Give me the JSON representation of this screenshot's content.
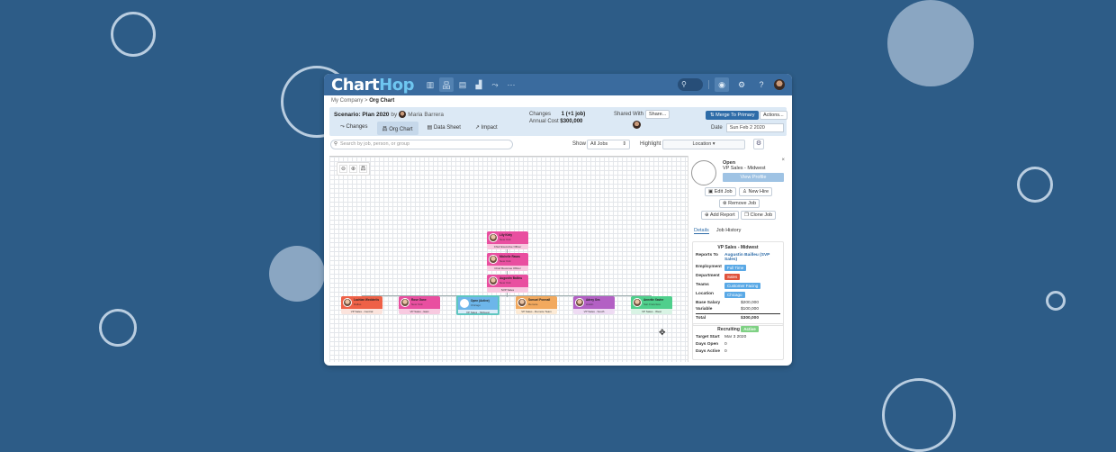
{
  "app": {
    "logo_main": "Chart",
    "logo_accent": "Hop"
  },
  "topbar": {
    "nav_icons": [
      {
        "name": "bar-chart-icon",
        "glyph": "▥",
        "active": false
      },
      {
        "name": "org-chart-icon",
        "glyph": "品",
        "active": true
      },
      {
        "name": "table-icon",
        "glyph": "▤",
        "active": false
      },
      {
        "name": "analytics-icon",
        "glyph": "▟",
        "active": false
      },
      {
        "name": "changes-icon",
        "glyph": "⤳",
        "active": false
      },
      {
        "name": "more-icon",
        "glyph": "···",
        "active": false
      }
    ],
    "search_glyph": "⚲",
    "right_icons": [
      {
        "name": "eye-icon",
        "glyph": "◉"
      },
      {
        "name": "gear-icon",
        "glyph": "⚙"
      },
      {
        "name": "help-icon",
        "glyph": "?"
      }
    ]
  },
  "breadcrumb": {
    "parent": "My Company",
    "separator": ">",
    "current": "Org Chart"
  },
  "scenario": {
    "title": "Scenario: Plan 2020",
    "by_label": "by",
    "owner": "Maria Barrera",
    "tabs": [
      {
        "label": "Changes",
        "icon": "⤳",
        "active": false
      },
      {
        "label": "Org Chart",
        "icon": "品",
        "active": true
      },
      {
        "label": "Data Sheet",
        "icon": "▤",
        "active": false
      },
      {
        "label": "Impact",
        "icon": "↗",
        "active": false
      }
    ],
    "changes_label": "Changes",
    "changes_value": "1 (+1 job)",
    "annual_cost_label": "Annual Cost",
    "annual_cost_value": "$300,000",
    "shared_with_label": "Shared With",
    "share_button": "Share...",
    "merge_button": "Merge To Primary",
    "actions_button": "Actions...",
    "date_label": "Date",
    "date_value": "Sun Feb 2 2020"
  },
  "filters": {
    "search_placeholder": "Search by job, person, or group",
    "show_label": "Show",
    "show_value": "All Jobs",
    "highlight_label": "Highlight",
    "highlight_value": "Location ▾"
  },
  "zoom_controls": [
    "⊖",
    "⊕",
    "品"
  ],
  "org_chart": {
    "chain": [
      {
        "name": "Lily Kiely",
        "location": "New York",
        "title": "Chief Executive Officer",
        "color": "#e94fa0",
        "light": "#f8c9e0"
      },
      {
        "name": "Michelle Ravas",
        "location": "New York",
        "title": "Chief Revenue Officer",
        "color": "#e94fa0",
        "light": "#f8c9e0"
      },
      {
        "name": "Augustin Bailleu",
        "location": "New York",
        "title": "SVP Sales",
        "color": "#e94fa0",
        "light": "#f8c9e0"
      }
    ],
    "reports": [
      {
        "name": "Lachlan Wedderlis",
        "location": "Dallas",
        "title": "VP Sales - Central",
        "color": "#ee6147",
        "light": "#fbe3dc",
        "selected": false
      },
      {
        "name": "Rose Gane",
        "location": "New York",
        "title": "VP Sales - East",
        "color": "#e94fa0",
        "light": "#f8c9e0",
        "selected": false
      },
      {
        "name": "Open (Active)",
        "location": "Chicago",
        "title": "VP Sales - Midwest",
        "color": "#6db6ea",
        "light": "#d9ecf9",
        "selected": true
      },
      {
        "name": "Samuel Pownall",
        "location": "Remote",
        "title": "VP Sales - Remote Team",
        "color": "#f2a95e",
        "light": "#fcead5",
        "selected": false
      },
      {
        "name": "Adrey Ora",
        "location": "Austin",
        "title": "VP Sales - South",
        "color": "#b360c4",
        "light": "#eedbf3",
        "selected": false
      },
      {
        "name": "Annette Xavier",
        "location": "San Francisco",
        "title": "VP Sales - West",
        "color": "#4fcf8c",
        "light": "#d8f3e4",
        "selected": false
      }
    ]
  },
  "panel": {
    "status": "Open",
    "job_title": "VP Sales - Midwest",
    "view_profile": "View Profile",
    "edit_job": "Edit Job",
    "new_hire": "New Hire",
    "remove_job": "Remove Job",
    "add_report": "Add Report",
    "clone_job": "Clone Job",
    "tabs": [
      "Details",
      "Job History"
    ],
    "details": {
      "heading": "VP Sales - Midwest",
      "reports_to_label": "Reports To",
      "reports_to_value": "Augustin Bailleu (SVP Sales)",
      "employment_label": "Employment",
      "employment_value": "Full Time",
      "department_label": "Department",
      "department_value": "Sales",
      "teams_label": "Teams",
      "teams_value": "Customer Facing",
      "location_label": "Location",
      "location_value": "Chicago",
      "base_salary_label": "Base Salary",
      "base_salary_value": "$200,000",
      "variable_label": "Variable",
      "variable_value": "$100,000",
      "total_label": "Total",
      "total_value": "$300,000"
    },
    "recruiting": {
      "label": "Recruiting",
      "status": "Active",
      "target_start_label": "Target Start",
      "target_start_value": "Mar 3 2020",
      "days_open_label": "Days Open",
      "days_open_value": "0",
      "days_active_label": "Days Active",
      "days_active_value": "0"
    }
  },
  "colors": {
    "background": "#2d5c87",
    "topbar": "#3a6b9e",
    "accent": "#2e6ca8",
    "employment_pill": "#5aa9e6",
    "department_pill": "#e0533c",
    "recruit_pill": "#7fd184"
  }
}
